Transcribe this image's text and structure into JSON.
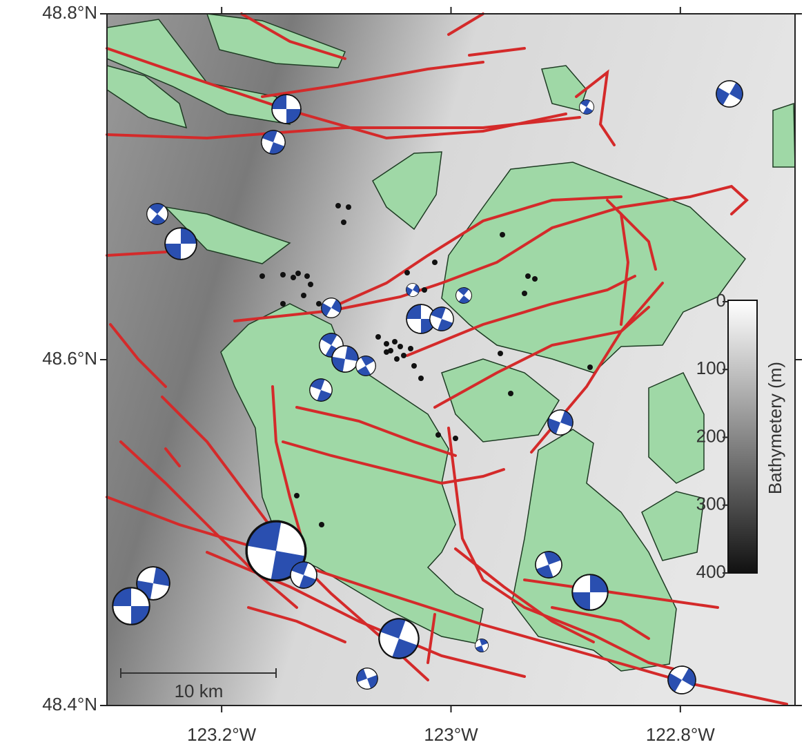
{
  "map": {
    "latlim": [
      48.4,
      48.8
    ],
    "lonlim": [
      -123.3,
      -122.7
    ],
    "lat_ticks": [
      {
        "value": 48.8,
        "label": "48.8°N"
      },
      {
        "value": 48.6,
        "label": "48.6°N"
      },
      {
        "value": 48.4,
        "label": "48.4°N"
      }
    ],
    "lon_ticks": [
      {
        "value": -123.2,
        "label": "123.2°W"
      },
      {
        "value": -123,
        "label": "123°W"
      },
      {
        "value": -122.8,
        "label": "122.8°W"
      }
    ],
    "scale_bar": {
      "label": "10 km"
    },
    "colorbar": {
      "title": "Bathymetery (m)",
      "lim": [
        0,
        400
      ],
      "ticks": [
        0,
        100,
        200,
        300,
        400
      ]
    }
  }
}
